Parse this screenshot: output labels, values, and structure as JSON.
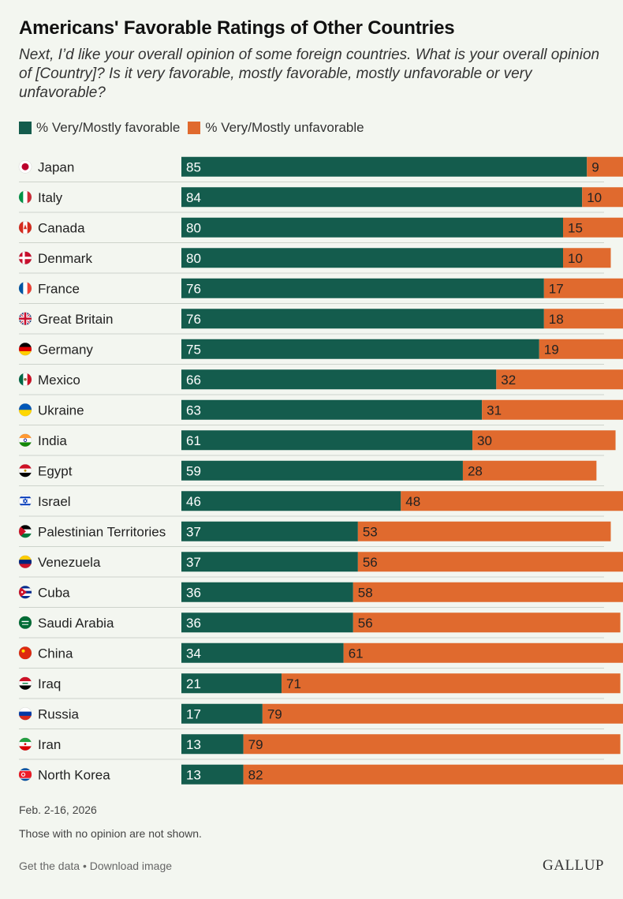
{
  "header": {
    "title": "Americans' Favorable Ratings of Other Countries",
    "subtitle": "Next, I’d like your overall opinion of some foreign countries. What is your overall opinion of [Country]? Is it very favorable, mostly favorable, mostly unfavorable or very unfavorable?"
  },
  "legend": {
    "favorable_label": "% Very/Mostly favorable",
    "unfavorable_label": "% Very/Mostly unfavorable"
  },
  "colors": {
    "favorable": "#145c4d",
    "unfavorable": "#e06a2e",
    "divider": "#cdd3cb"
  },
  "chart_data": {
    "type": "bar",
    "orientation": "horizontal",
    "stacked": true,
    "title": "Americans' Favorable Ratings of Other Countries",
    "categories": [
      "Japan",
      "Italy",
      "Canada",
      "Denmark",
      "France",
      "Great Britain",
      "Germany",
      "Mexico",
      "Ukraine",
      "India",
      "Egypt",
      "Israel",
      "Palestinian Territories",
      "Venezuela",
      "Cuba",
      "Saudi Arabia",
      "China",
      "Iraq",
      "Russia",
      "Iran",
      "North Korea"
    ],
    "flag_icons": [
      "japan-flag-icon",
      "italy-flag-icon",
      "canada-flag-icon",
      "denmark-flag-icon",
      "france-flag-icon",
      "great-britain-flag-icon",
      "germany-flag-icon",
      "mexico-flag-icon",
      "ukraine-flag-icon",
      "india-flag-icon",
      "egypt-flag-icon",
      "israel-flag-icon",
      "palestine-flag-icon",
      "venezuela-flag-icon",
      "cuba-flag-icon",
      "saudi-arabia-flag-icon",
      "china-flag-icon",
      "iraq-flag-icon",
      "russia-flag-icon",
      "iran-flag-icon",
      "north-korea-flag-icon"
    ],
    "series": [
      {
        "name": "% Very/Mostly favorable",
        "values": [
          85,
          84,
          80,
          80,
          76,
          76,
          75,
          66,
          63,
          61,
          59,
          46,
          37,
          37,
          36,
          36,
          34,
          21,
          17,
          13,
          13
        ]
      },
      {
        "name": "% Very/Mostly unfavorable",
        "values": [
          9,
          10,
          15,
          10,
          17,
          18,
          19,
          32,
          31,
          30,
          28,
          48,
          53,
          56,
          58,
          56,
          61,
          71,
          79,
          79,
          82
        ]
      }
    ],
    "xlim": [
      0,
      100
    ],
    "xlabel": "",
    "ylabel": "",
    "legend_position": "top-left"
  },
  "footer": {
    "date": "Feb. 2-16, 2026",
    "note": "Those with no opinion are not shown.",
    "get_data": "Get the data",
    "separator": "•",
    "download": "Download image",
    "brand": "GALLUP"
  }
}
